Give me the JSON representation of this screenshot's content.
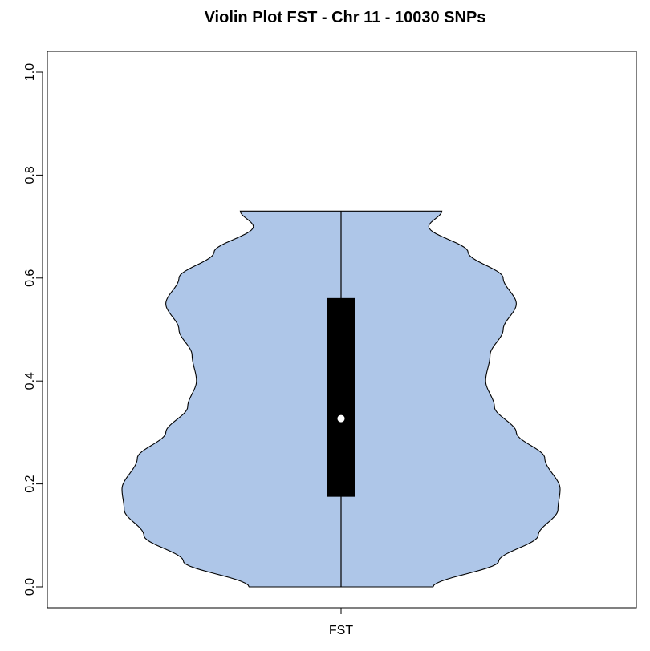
{
  "chart_data": {
    "type": "violin",
    "title": "Violin Plot FST - Chr 11 - 10030 SNPs",
    "xlabel": "",
    "ylabel": "",
    "categories": [
      "FST"
    ],
    "ylim": [
      0.0,
      1.0
    ],
    "yticks": [
      "0.0",
      "0.2",
      "0.4",
      "0.6",
      "0.8",
      "1.0"
    ],
    "grid": false,
    "legend": "none",
    "colors": {
      "fill": "#aec6e8",
      "outline": "#000000",
      "box": "#000000",
      "median_dot": "#ffffff"
    },
    "box": {
      "min": 0.0,
      "q1": 0.175,
      "median": 0.327,
      "q3": 0.561,
      "max": 0.73
    },
    "density_halfwidth": [
      [
        0.0,
        0.42
      ],
      [
        0.05,
        0.72
      ],
      [
        0.1,
        0.9
      ],
      [
        0.15,
        0.99
      ],
      [
        0.19,
        1.0
      ],
      [
        0.25,
        0.93
      ],
      [
        0.3,
        0.8
      ],
      [
        0.35,
        0.7
      ],
      [
        0.4,
        0.66
      ],
      [
        0.45,
        0.68
      ],
      [
        0.5,
        0.74
      ],
      [
        0.55,
        0.8
      ],
      [
        0.6,
        0.74
      ],
      [
        0.65,
        0.58
      ],
      [
        0.7,
        0.4
      ],
      [
        0.73,
        0.46
      ]
    ]
  }
}
